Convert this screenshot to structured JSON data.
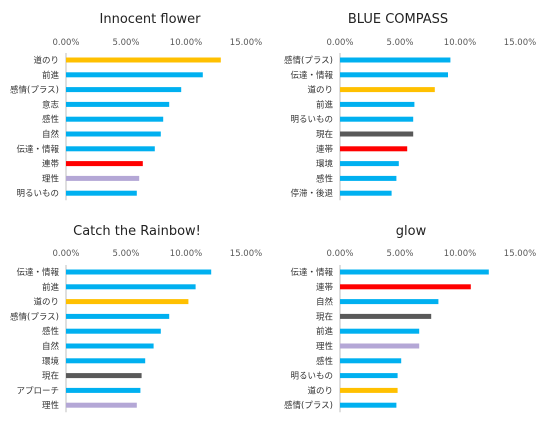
{
  "colors": {
    "blue": "#00B0F0",
    "gold": "#FFC000",
    "red": "#FF0000",
    "dark": "#595959",
    "lavender": "#B4A7D6",
    "axis": "#BFBFBF"
  },
  "chart_data": [
    {
      "type": "bar",
      "orientation": "horizontal",
      "title": "Innocent flower",
      "xticks": [
        "0.00%",
        "5.00%",
        "10.00%",
        "15.00%"
      ],
      "xlim": [
        0,
        15
      ],
      "categories": [
        "道のり",
        "前進",
        "感情(プラス)",
        "意志",
        "感性",
        "自然",
        "伝達・情報",
        "連帯",
        "理性",
        "明るいもの"
      ],
      "values": [
        12.9,
        11.4,
        9.6,
        8.6,
        8.1,
        7.9,
        7.4,
        6.4,
        6.1,
        5.9
      ],
      "colors": [
        "gold",
        "blue",
        "blue",
        "blue",
        "blue",
        "blue",
        "blue",
        "red",
        "lavender",
        "blue"
      ]
    },
    {
      "type": "bar",
      "orientation": "horizontal",
      "title": "BLUE COMPASS",
      "xticks": [
        "0.00%",
        "5.00%",
        "10.00%",
        "15.00%"
      ],
      "xlim": [
        0,
        15
      ],
      "categories": [
        "感情(プラス)",
        "伝達・情報",
        "道のり",
        "前進",
        "明るいもの",
        "現在",
        "連帯",
        "環境",
        "感性",
        "停滞・後退"
      ],
      "values": [
        9.2,
        9.0,
        7.9,
        6.2,
        6.1,
        6.1,
        5.6,
        4.9,
        4.7,
        4.3
      ],
      "colors": [
        "blue",
        "blue",
        "gold",
        "blue",
        "blue",
        "dark",
        "red",
        "blue",
        "blue",
        "blue"
      ]
    },
    {
      "type": "bar",
      "orientation": "horizontal",
      "title": "Catch the Rainbow!",
      "xticks": [
        "0.00%",
        "5.00%",
        "10.00%",
        "15.00%"
      ],
      "xlim": [
        0,
        15
      ],
      "categories": [
        "伝達・情報",
        "前進",
        "道のり",
        "感情(プラス)",
        "感性",
        "自然",
        "環境",
        "現在",
        "アプローチ",
        "理性"
      ],
      "values": [
        12.1,
        10.8,
        10.2,
        8.6,
        7.9,
        7.3,
        6.6,
        6.3,
        6.2,
        5.9
      ],
      "colors": [
        "blue",
        "blue",
        "gold",
        "blue",
        "blue",
        "blue",
        "blue",
        "dark",
        "blue",
        "lavender"
      ]
    },
    {
      "type": "bar",
      "orientation": "horizontal",
      "title": "glow",
      "xticks": [
        "0.00%",
        "5.00%",
        "10.00%",
        "15.00%"
      ],
      "xlim": [
        0,
        15
      ],
      "categories": [
        "伝達・情報",
        "連帯",
        "自然",
        "現在",
        "前進",
        "理性",
        "感性",
        "明るいもの",
        "道のり",
        "感情(プラス)"
      ],
      "values": [
        12.4,
        10.9,
        8.2,
        7.6,
        6.6,
        6.6,
        5.1,
        4.8,
        4.8,
        4.7
      ],
      "colors": [
        "blue",
        "red",
        "blue",
        "dark",
        "blue",
        "lavender",
        "blue",
        "blue",
        "gold",
        "blue"
      ]
    }
  ]
}
